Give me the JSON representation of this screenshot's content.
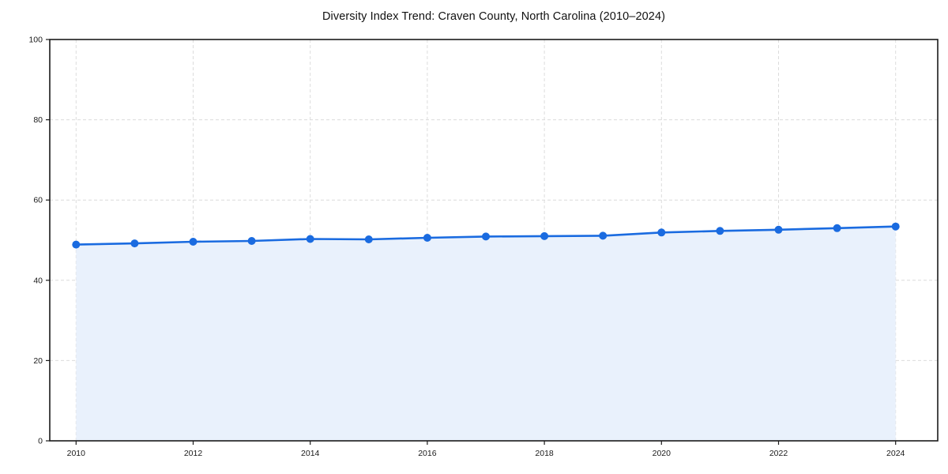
{
  "chart_data": {
    "type": "area",
    "title": "Diversity Index Trend: Craven County, North Carolina (2010–2024)",
    "xlabel": "",
    "ylabel": "",
    "x": [
      2010,
      2011,
      2012,
      2013,
      2014,
      2015,
      2016,
      2017,
      2018,
      2019,
      2020,
      2021,
      2022,
      2023,
      2024
    ],
    "series": [
      {
        "name": "Diversity Index",
        "values": [
          48.9,
          49.2,
          49.6,
          49.8,
          50.3,
          50.2,
          50.6,
          50.9,
          51.0,
          51.1,
          51.9,
          52.3,
          52.6,
          53.0,
          53.4
        ]
      }
    ],
    "xlim": [
      2009.55,
      2024.72
    ],
    "ylim": [
      0,
      100
    ],
    "xticks": [
      2010,
      2012,
      2014,
      2016,
      2018,
      2020,
      2022,
      2024
    ],
    "yticks": [
      0,
      20,
      40,
      60,
      80,
      100
    ],
    "grid": true,
    "grid_style": "dashed",
    "legend": "none",
    "marker": "circle",
    "colors": {
      "line": "#1a6be0",
      "marker": "#1a6be0",
      "fill": "#e9f1fc",
      "grid": "#dcdcdc",
      "spine": "#1a1a1a",
      "tick_label": "#1a1a1a",
      "title": "#111111",
      "background": "#ffffff"
    }
  }
}
